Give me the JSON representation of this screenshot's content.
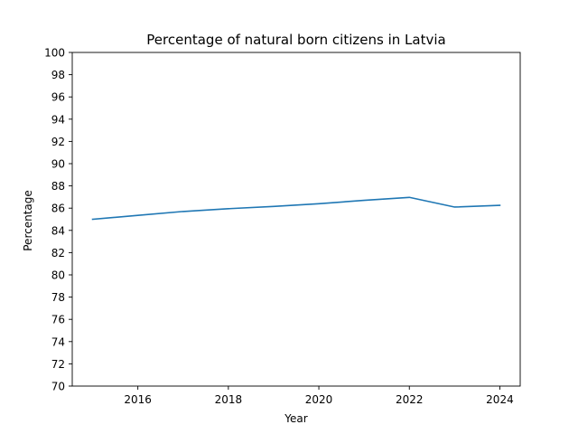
{
  "chart_data": {
    "type": "line",
    "title": "Percentage of natural born citizens in Latvia",
    "xlabel": "Year",
    "ylabel": "Percentage",
    "xlim": [
      2014.55,
      2024.45
    ],
    "ylim": [
      70,
      100
    ],
    "x_ticks": [
      2016,
      2018,
      2020,
      2022,
      2024
    ],
    "y_ticks": [
      70,
      72,
      74,
      76,
      78,
      80,
      82,
      84,
      86,
      88,
      90,
      92,
      94,
      96,
      98,
      100
    ],
    "grid": false,
    "legend": "none",
    "series": [
      {
        "color": "#1f77b4",
        "x": [
          2015,
          2016,
          2017,
          2018,
          2019,
          2020,
          2021,
          2022,
          2023,
          2024
        ],
        "y": [
          85.0,
          85.35,
          85.7,
          85.95,
          86.15,
          86.4,
          86.7,
          86.97,
          86.1,
          86.25
        ]
      }
    ]
  }
}
